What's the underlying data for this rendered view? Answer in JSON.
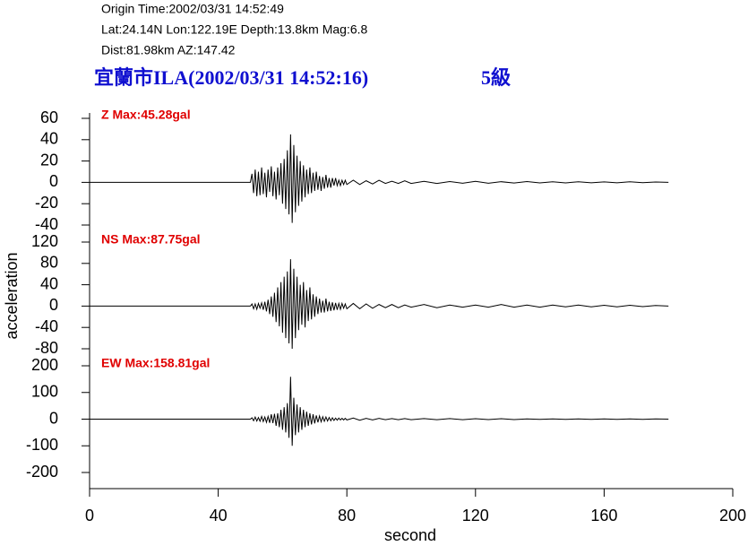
{
  "chart_data": {
    "type": "line",
    "header_lines": [
      "Origin Time:2002/03/31 14:52:49",
      "Lat:24.14N  Lon:122.19E  Depth:13.8km  Mag:6.8",
      "Dist:81.98km  AZ:147.42"
    ],
    "title": "宜蘭市ILA(2002/03/31 14:52:16)",
    "title_intensity": "5級",
    "xlabel": "second",
    "ylabel": "acceleration",
    "xlim": [
      0,
      200
    ],
    "xticks": [
      0,
      40,
      80,
      120,
      160,
      200
    ],
    "x": [
      0,
      50,
      50.5,
      51,
      51.5,
      52,
      52.5,
      53,
      53.5,
      54,
      54.5,
      55,
      55.5,
      56,
      56.5,
      57,
      57.5,
      58,
      58.5,
      59,
      59.5,
      60,
      60.5,
      61,
      61.5,
      62,
      62.5,
      63,
      63.5,
      64,
      64.5,
      65,
      65.5,
      66,
      66.5,
      67,
      67.5,
      68,
      68.5,
      69,
      69.5,
      70,
      70.5,
      71,
      71.5,
      72,
      72.5,
      73,
      73.5,
      74,
      74.5,
      75,
      75.5,
      76,
      76.5,
      77,
      77.5,
      78,
      78.5,
      79,
      79.5,
      80,
      82,
      84,
      86,
      88,
      90,
      92,
      94,
      96,
      98,
      100,
      104,
      108,
      112,
      116,
      120,
      124,
      128,
      132,
      136,
      140,
      144,
      148,
      152,
      156,
      160,
      164,
      168,
      172,
      176,
      180
    ],
    "series": [
      {
        "name": "Z Max:45.28gal",
        "color": "#000000",
        "ylim": [
          -40,
          60
        ],
        "yticks": [
          60,
          40,
          20,
          0,
          -20,
          -40
        ],
        "values": [
          0,
          0,
          8,
          -10,
          12,
          -13,
          10,
          -12,
          14,
          -11,
          9,
          -14,
          12,
          -9,
          15,
          -13,
          10,
          -16,
          14,
          -12,
          18,
          -20,
          22,
          -25,
          30,
          -30,
          45,
          -38,
          35,
          -28,
          25,
          -22,
          20,
          -18,
          16,
          -14,
          12,
          -11,
          14,
          -10,
          9,
          -8,
          10,
          -7,
          6,
          -8,
          5,
          -6,
          7,
          -5,
          4,
          -5,
          4,
          -3,
          4,
          -3,
          2,
          -3,
          2,
          -2,
          2,
          -2,
          2,
          -2,
          1.5,
          -1.5,
          2,
          -1,
          1,
          -1,
          1.5,
          -1,
          1,
          -1,
          0.8,
          -0.8,
          1,
          -0.8,
          0.6,
          -0.6,
          0.8,
          -0.5,
          0.5,
          -0.5,
          0.6,
          -0.4,
          0.4,
          -0.4,
          0.5,
          -0.3,
          0.3,
          0
        ]
      },
      {
        "name": "NS Max:87.75gal",
        "color": "#000000",
        "ylim": [
          -80,
          120
        ],
        "yticks": [
          120,
          80,
          40,
          0,
          -40,
          -80
        ],
        "values": [
          0,
          0,
          4,
          -5,
          4,
          -6,
          5,
          -4,
          6,
          -7,
          8,
          -10,
          12,
          -15,
          18,
          -20,
          25,
          -30,
          35,
          -38,
          45,
          -50,
          55,
          -60,
          65,
          -70,
          87.75,
          -80,
          70,
          -60,
          55,
          -45,
          40,
          -35,
          45,
          -40,
          30,
          -28,
          35,
          -25,
          22,
          -20,
          18,
          -15,
          14,
          -12,
          10,
          -12,
          14,
          -10,
          8,
          -9,
          7,
          -8,
          6,
          -7,
          5,
          -6,
          5,
          -4,
          4,
          -5,
          5,
          -5,
          4,
          -4,
          3,
          -3,
          3,
          -3,
          2,
          -2,
          3,
          -3,
          2,
          -2,
          2,
          -2,
          3,
          -2,
          2,
          -2,
          2,
          -1.5,
          2,
          -1.5,
          1.5,
          -1.5,
          1.5,
          -1,
          1,
          0
        ]
      },
      {
        "name": "EW Max:158.81gal",
        "color": "#000000",
        "ylim": [
          -200,
          200
        ],
        "yticks": [
          200,
          100,
          0,
          -100,
          -200
        ],
        "values": [
          0,
          0,
          5,
          -6,
          8,
          -7,
          6,
          -8,
          10,
          -9,
          8,
          -12,
          10,
          -14,
          18,
          -15,
          20,
          -25,
          22,
          -30,
          35,
          -40,
          45,
          -50,
          60,
          -70,
          158.81,
          -100,
          80,
          -60,
          55,
          -50,
          45,
          -40,
          35,
          -30,
          28,
          -25,
          22,
          -20,
          18,
          -16,
          14,
          -12,
          12,
          -10,
          9,
          -8,
          8,
          -7,
          6,
          -6,
          5,
          -5,
          4,
          -4,
          4,
          -3,
          3,
          -3,
          3,
          -3,
          4,
          -4,
          3,
          -3,
          3,
          -2,
          2,
          -2,
          2,
          -2,
          2,
          -2,
          2,
          -2,
          1.5,
          -1.5,
          1.5,
          -1.5,
          1,
          -1,
          1,
          -1,
          1,
          -1,
          1,
          -1,
          1,
          -1,
          1,
          0
        ]
      }
    ]
  }
}
